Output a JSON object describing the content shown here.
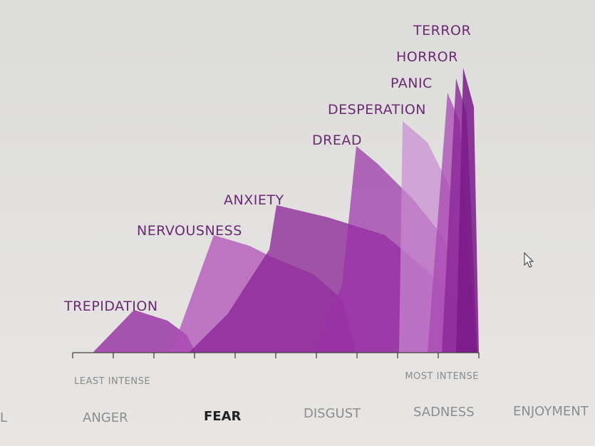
{
  "states": [
    "TREPIDATION",
    "NERVOUSNESS",
    "ANXIETY",
    "DREAD",
    "DESPERATION",
    "PANIC",
    "HORROR",
    "TERROR"
  ],
  "axis": {
    "start": "LEAST INTENSE",
    "end": "MOST INTENSE"
  },
  "tabs": [
    "L",
    "ANGER",
    "FEAR",
    "DISGUST",
    "SADNESS",
    "ENJOYMENT"
  ]
}
